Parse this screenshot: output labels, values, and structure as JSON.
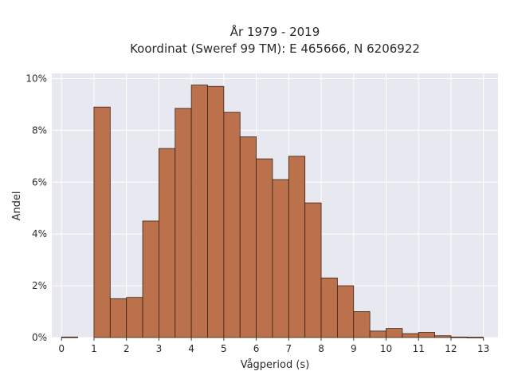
{
  "chart_data": {
    "type": "bar",
    "title_line1": "År 1979 - 2019",
    "title_line2": "Koordinat (Sweref 99 TM): E 465666, N 6206922",
    "xlabel": "Vågperiod (s)",
    "ylabel": "Andel",
    "bin_width": 0.5,
    "x_bin_starts": [
      0,
      0.5,
      1,
      1.5,
      2,
      2.5,
      3,
      3.5,
      4,
      4.5,
      5,
      5.5,
      6,
      6.5,
      7,
      7.5,
      8,
      8.5,
      9,
      9.5,
      10,
      10.5,
      11,
      11.5,
      12,
      12.5
    ],
    "values": [
      0.02,
      0,
      8.9,
      1.5,
      1.55,
      4.5,
      7.3,
      8.85,
      9.75,
      9.7,
      8.7,
      7.75,
      6.9,
      6.1,
      7.0,
      5.2,
      2.3,
      2.0,
      1.0,
      0.25,
      0.35,
      0.15,
      0.2,
      0.07,
      0.02,
      0.01
    ],
    "x_ticks": [
      0,
      1,
      2,
      3,
      4,
      5,
      6,
      7,
      8,
      9,
      10,
      11,
      12,
      13
    ],
    "y_ticks": [
      0,
      2,
      4,
      6,
      8,
      10
    ],
    "y_tick_labels": [
      "0%",
      "2%",
      "4%",
      "6%",
      "8%",
      "10%"
    ],
    "xlim": [
      -0.3,
      13.45
    ],
    "ylim": [
      0,
      10.2
    ],
    "grid": true,
    "bar_color": "#b5643a",
    "bar_edge_color": "#3a2316",
    "plot_bg_color": "#e8e8f0"
  }
}
